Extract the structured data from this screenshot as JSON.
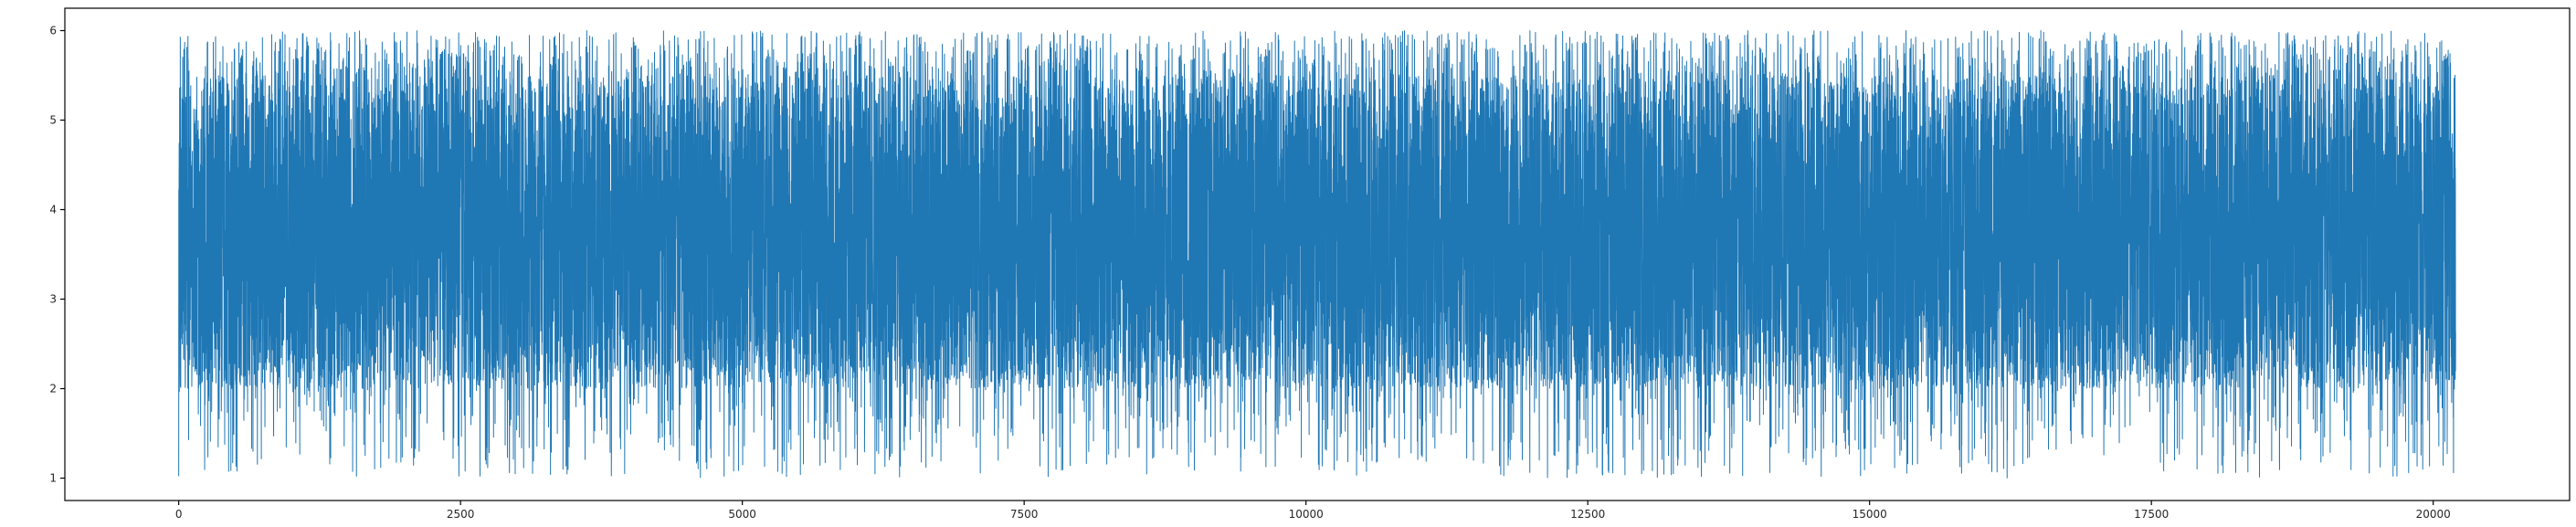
{
  "chart_data": {
    "type": "line",
    "title": "",
    "xlabel": "",
    "ylabel": "",
    "n_points": 20200,
    "value_range_observed": [
      1.0,
      6.0
    ],
    "typical_band": [
      2.0,
      5.5
    ],
    "xlim": [
      -1010,
      21210
    ],
    "ylim": [
      0.75,
      6.25
    ],
    "x_ticks": [
      0,
      2500,
      5000,
      7500,
      10000,
      12500,
      15000,
      17500,
      20000
    ],
    "x_tick_labels": [
      "0",
      "2500",
      "5000",
      "7500",
      "10000",
      "12500",
      "15000",
      "17500",
      "20000"
    ],
    "y_ticks": [
      1,
      2,
      3,
      4,
      5,
      6
    ],
    "y_tick_labels": [
      "1",
      "2",
      "3",
      "4",
      "5",
      "6"
    ],
    "series": [
      {
        "name": "series-0",
        "color": "#1f77b4",
        "description": "dense noisy signal bounded between 1 and 6"
      }
    ],
    "grid": false,
    "legend": false
  }
}
